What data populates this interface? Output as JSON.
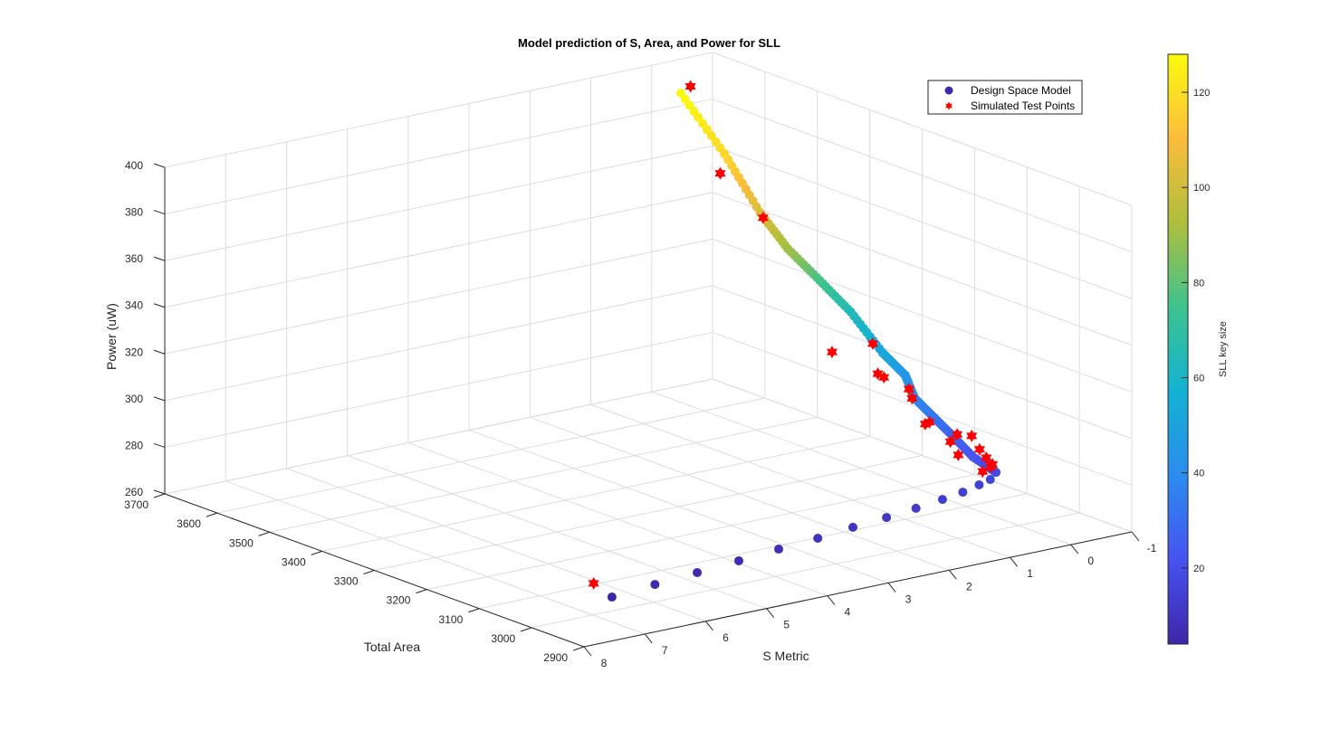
{
  "chart_data": {
    "type": "scatter3d",
    "title": "Model prediction of S, Area, and Power for SLL",
    "xlabel": "S Metric",
    "ylabel": "Total Area",
    "zlabel": "Power (uW)",
    "xlim": [
      -1,
      8
    ],
    "ylim": [
      2900,
      3700
    ],
    "zlim": [
      260,
      400
    ],
    "xticks": [
      -1,
      0,
      1,
      2,
      3,
      4,
      5,
      6,
      7,
      8
    ],
    "yticks": [
      2900,
      3000,
      3100,
      3200,
      3300,
      3400,
      3500,
      3600,
      3700
    ],
    "zticks": [
      260,
      280,
      300,
      320,
      340,
      360,
      380,
      400
    ],
    "grid": true,
    "legend_placement": "top-right",
    "legend": [
      "Design Space Model",
      "Simulated Test Points"
    ],
    "colorbar": {
      "label": "SLL key size",
      "range": [
        4,
        128
      ],
      "ticks": [
        20,
        40,
        60,
        80,
        100,
        120
      ],
      "colormap": "parula",
      "colors": [
        "#3e26a8",
        "#4653f0",
        "#2c8cee",
        "#12b2d3",
        "#3ec38f",
        "#aebf3c",
        "#fdbc3b",
        "#f9fb0e"
      ]
    },
    "series": [
      {
        "name": "Design Space Model",
        "marker": "filled-circle",
        "columns": [
          "S",
          "Area",
          "Power",
          "KeySize"
        ],
        "points": [
          [
            6.62,
            3007,
            265,
            4
          ],
          [
            5.81,
            3019,
            265,
            5
          ],
          [
            5.03,
            3029,
            265,
            6
          ],
          [
            4.26,
            3039,
            265,
            7
          ],
          [
            3.51,
            3050,
            265,
            8
          ],
          [
            2.79,
            3059,
            265,
            9
          ],
          [
            2.11,
            3071,
            265,
            10
          ],
          [
            1.48,
            3080,
            265,
            11
          ],
          [
            0.91,
            3090,
            265,
            12
          ],
          [
            0.38,
            3101,
            265,
            13
          ],
          [
            -0.04,
            3111,
            265,
            14
          ],
          [
            -0.42,
            3124,
            265,
            15
          ],
          [
            -0.69,
            3134,
            265,
            16
          ],
          [
            -0.62,
            3115,
            270,
            18
          ],
          [
            -0.49,
            3144,
            275,
            22
          ],
          [
            -0.44,
            3180,
            282,
            27
          ],
          [
            -0.3,
            3199,
            289,
            32
          ],
          [
            -0.16,
            3217,
            296,
            38
          ],
          [
            -0.18,
            3237,
            304,
            44
          ],
          [
            0.08,
            3250,
            314,
            52
          ],
          [
            0.18,
            3299,
            328,
            64
          ],
          [
            0.4,
            3333,
            340,
            76
          ],
          [
            0.63,
            3367,
            352,
            90
          ],
          [
            0.75,
            3406,
            365,
            102
          ],
          [
            0.44,
            3510,
            380,
            118
          ],
          [
            0.16,
            3626,
            395,
            128
          ]
        ]
      },
      {
        "name": "Simulated Test Points",
        "marker": "red-hexagram",
        "color": "#ff0000",
        "columns": [
          "S",
          "Area",
          "Power"
        ],
        "points": [
          [
            0.0,
            3626,
            397
          ],
          [
            0.51,
            3510,
            372
          ],
          [
            0.7,
            3406,
            362.5
          ],
          [
            0.49,
            3299,
            312.6
          ],
          [
            -0.18,
            3299,
            312.5
          ],
          [
            0.16,
            3250,
            305.5
          ],
          [
            0.06,
            3250,
            303.4
          ],
          [
            -0.24,
            3237,
            297.8
          ],
          [
            -0.12,
            3217,
            296.1
          ],
          [
            -0.18,
            3199,
            286.2
          ],
          [
            -0.25,
            3199,
            286.6
          ],
          [
            -0.54,
            3180,
            281.4
          ],
          [
            -0.78,
            3180,
            279.4
          ],
          [
            -0.43,
            3180,
            278.9
          ],
          [
            -0.25,
            3144,
            277.1
          ],
          [
            -0.6,
            3144,
            277.6
          ],
          [
            -0.71,
            3144,
            273.4
          ],
          [
            -0.56,
            3115,
            273.8
          ],
          [
            -0.4,
            3115,
            271.6
          ],
          [
            -0.53,
            3115,
            272.8
          ],
          [
            6.92,
            3007,
            272.5
          ]
        ]
      }
    ]
  }
}
